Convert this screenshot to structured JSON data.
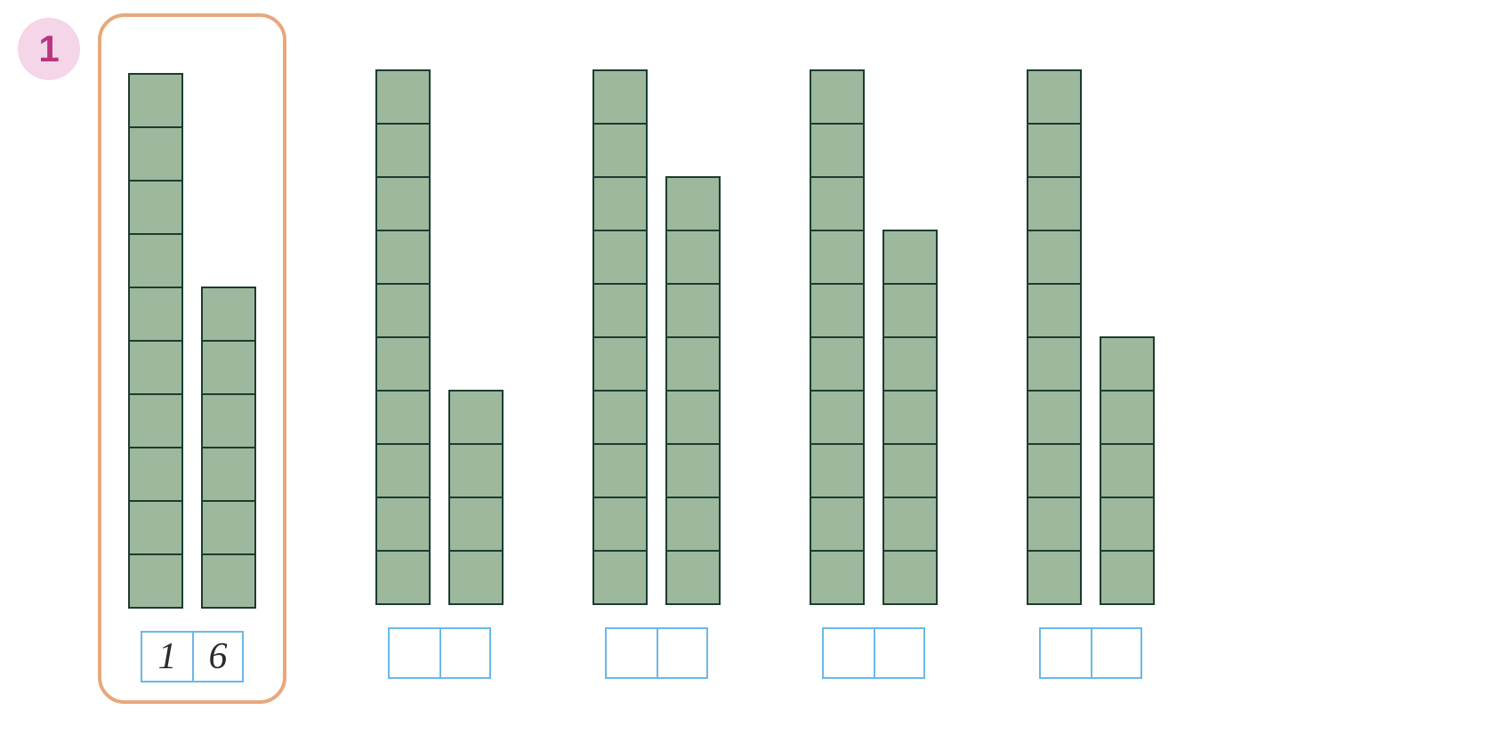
{
  "exercise": {
    "number": "1",
    "number_bg_color": "#f5d5e8",
    "number_text_color": "#b8367d"
  },
  "block_color": "#9eb89e",
  "block_border_color": "#1a3d2e",
  "example_border_color": "#e8a87c",
  "answer_box_border_color": "#6bb8e8",
  "groups": [
    {
      "is_example": true,
      "bars": [
        10,
        6
      ],
      "answer": [
        "1",
        "6"
      ]
    },
    {
      "is_example": false,
      "bars": [
        10,
        4
      ],
      "answer": [
        "",
        ""
      ]
    },
    {
      "is_example": false,
      "bars": [
        10,
        8
      ],
      "answer": [
        "",
        ""
      ]
    },
    {
      "is_example": false,
      "bars": [
        10,
        7
      ],
      "answer": [
        "",
        ""
      ]
    },
    {
      "is_example": false,
      "bars": [
        10,
        5
      ],
      "answer": [
        "",
        ""
      ]
    }
  ]
}
